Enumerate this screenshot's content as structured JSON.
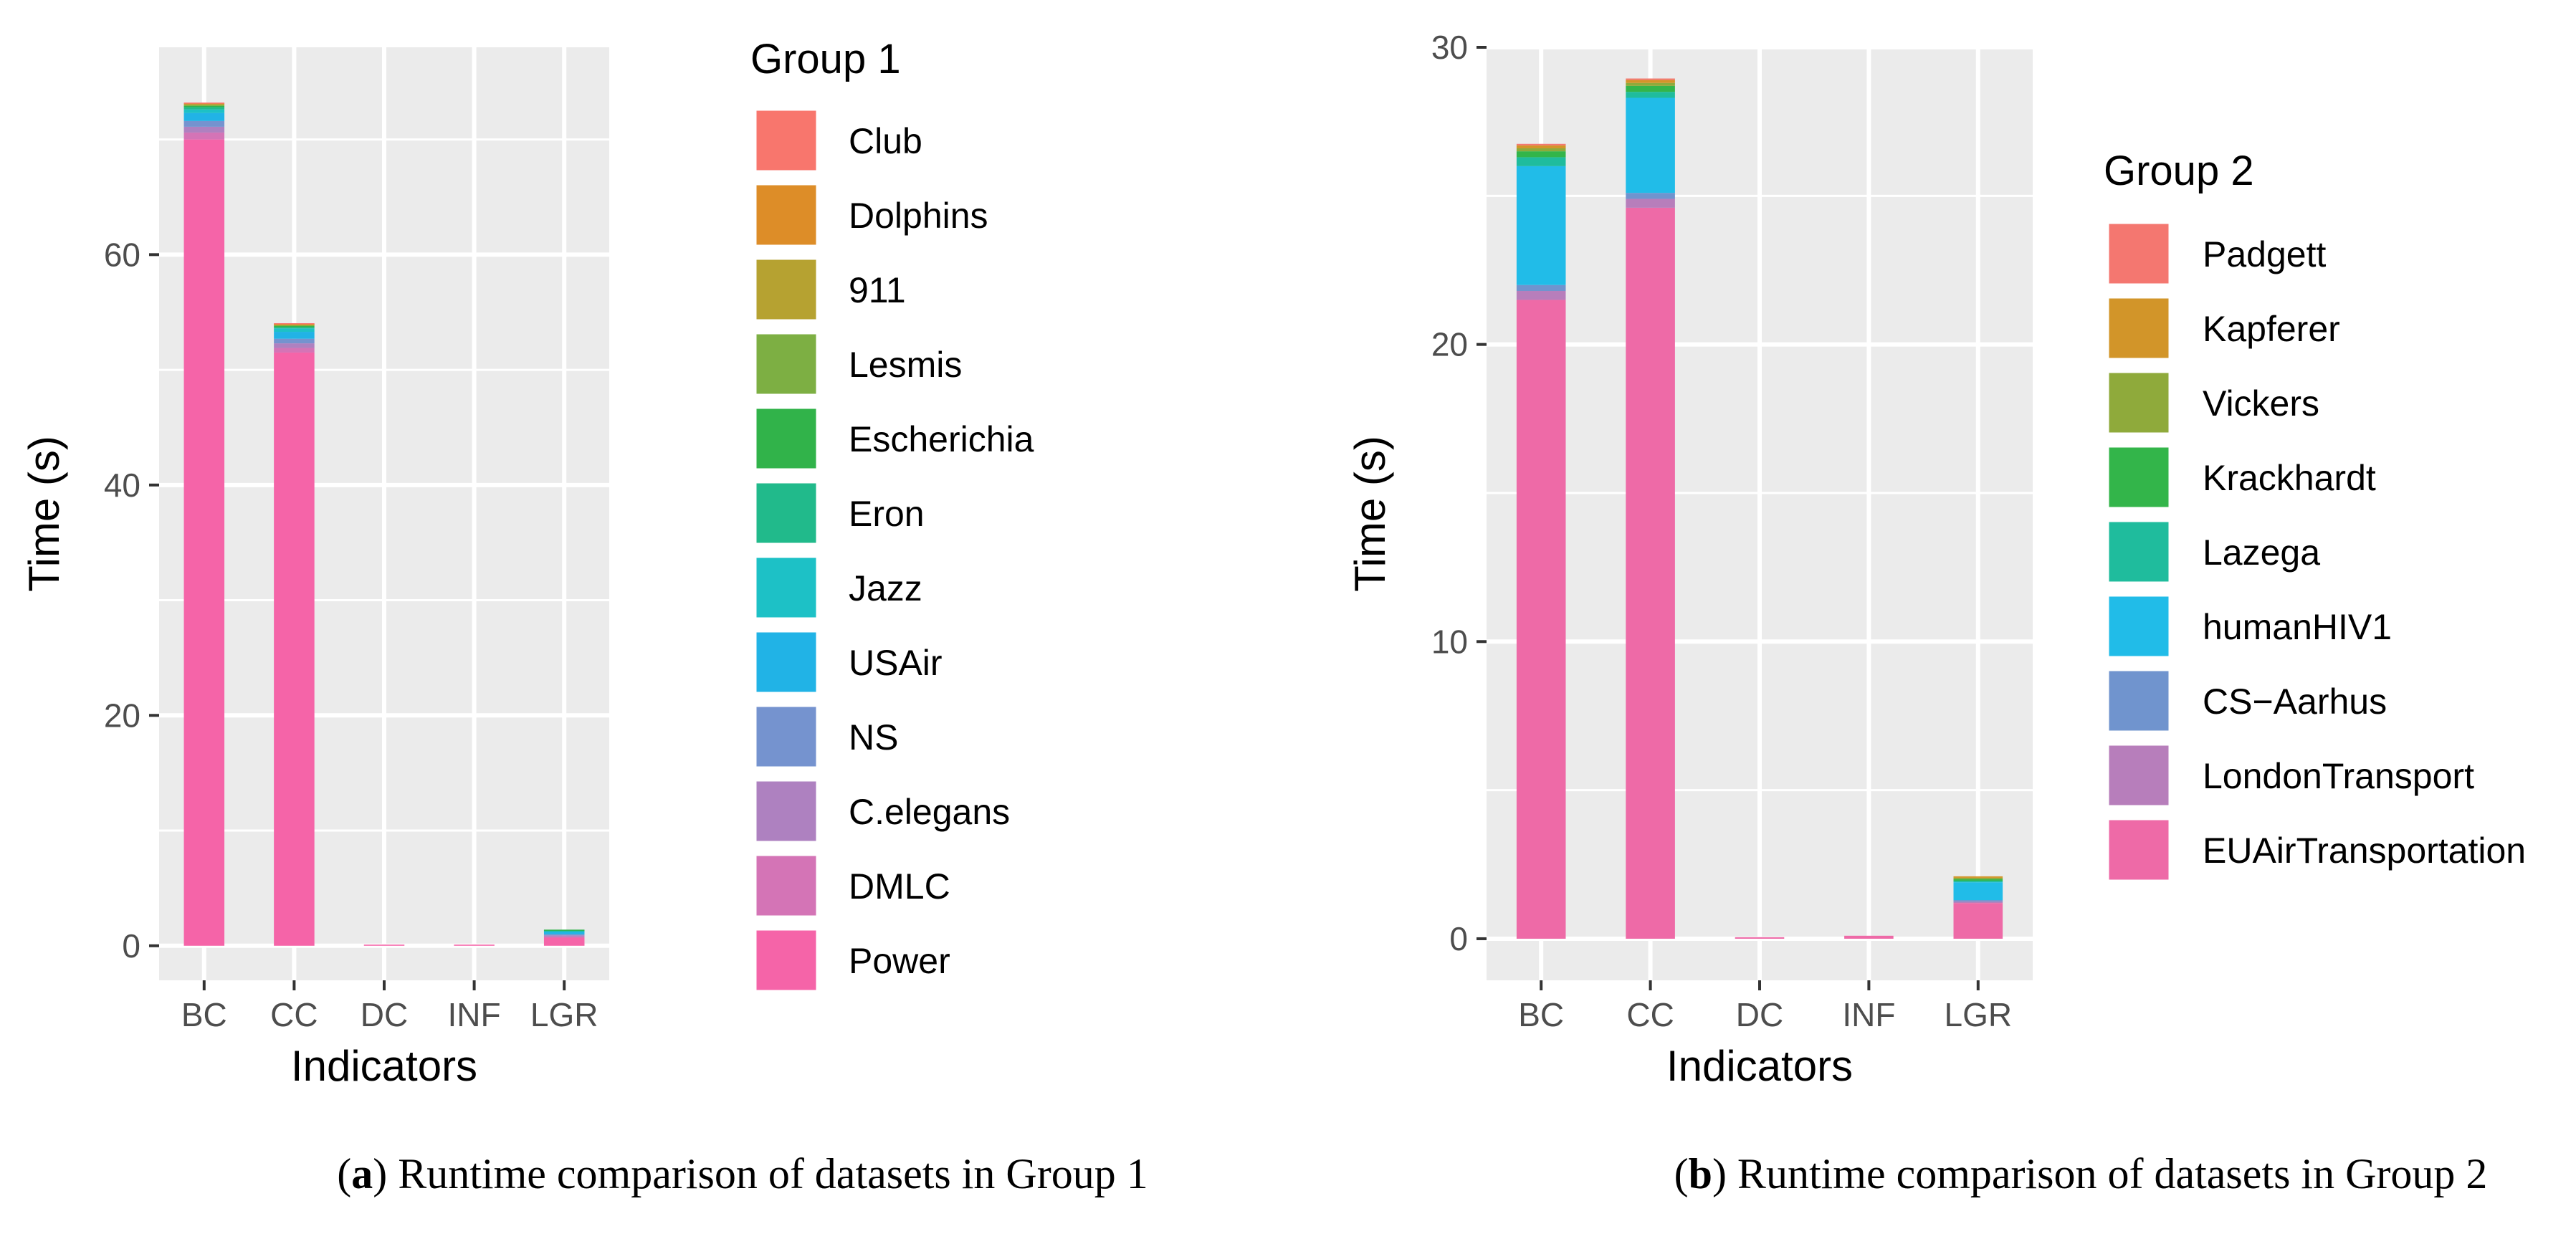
{
  "chart_data": [
    {
      "type": "bar",
      "stacked": true,
      "xlabel": "Indicators",
      "ylabel": "Time (s)",
      "categories": [
        "BC",
        "CC",
        "DC",
        "INF",
        "LGR"
      ],
      "ylim": [
        -3.0,
        78.0
      ],
      "yticks": [
        0,
        20,
        40,
        60
      ],
      "legend_title": "Group 1",
      "caption_letter": "a",
      "caption_text": "Runtime comparison of datasets in Group 1",
      "series": [
        {
          "name": "Power",
          "color": "#F564A8",
          "values": [
            70.0,
            51.5,
            0.1,
            0.1,
            0.7
          ]
        },
        {
          "name": "DMLC",
          "color": "#D474B6",
          "values": [
            0.6,
            0.4,
            0.0,
            0.0,
            0.1
          ]
        },
        {
          "name": "C.elegans",
          "color": "#AE81C0",
          "values": [
            0.5,
            0.4,
            0.0,
            0.0,
            0.1
          ]
        },
        {
          "name": "NS",
          "color": "#7593CF",
          "values": [
            0.5,
            0.4,
            0.0,
            0.0,
            0.1
          ]
        },
        {
          "name": "USAir",
          "color": "#21B3E6",
          "values": [
            0.7,
            0.6,
            0.0,
            0.0,
            0.2
          ]
        },
        {
          "name": "Jazz",
          "color": "#1DC1C6",
          "values": [
            0.3,
            0.3,
            0.0,
            0.0,
            0.1
          ]
        },
        {
          "name": "Eron",
          "color": "#21BA8B",
          "values": [
            0.2,
            0.1,
            0.0,
            0.0,
            0.05
          ]
        },
        {
          "name": "Escherichia",
          "color": "#31B34A",
          "values": [
            0.1,
            0.1,
            0.0,
            0.0,
            0.05
          ]
        },
        {
          "name": "Lesmis",
          "color": "#7DAF43",
          "values": [
            0.1,
            0.1,
            0.0,
            0.0,
            0.0
          ]
        },
        {
          "name": "911",
          "color": "#B6A231",
          "values": [
            0.1,
            0.05,
            0.0,
            0.0,
            0.0
          ]
        },
        {
          "name": "Dolphins",
          "color": "#DD8D28",
          "values": [
            0.05,
            0.05,
            0.0,
            0.0,
            0.0
          ]
        },
        {
          "name": "Club",
          "color": "#F8766D",
          "values": [
            0.05,
            0.05,
            0.0,
            0.0,
            0.0
          ]
        }
      ]
    },
    {
      "type": "bar",
      "stacked": true,
      "xlabel": "Indicators",
      "ylabel": "Time (s)",
      "categories": [
        "BC",
        "CC",
        "DC",
        "INF",
        "LGR"
      ],
      "ylim": [
        -1.4,
        30.0
      ],
      "yticks": [
        0,
        10,
        20,
        30
      ],
      "legend_title": "Group 2",
      "caption_letter": "b",
      "caption_text": "Runtime comparison of datasets in Group 2",
      "series": [
        {
          "name": "EUAirTransportation",
          "color": "#EE6AA7",
          "values": [
            21.5,
            24.6,
            0.05,
            0.1,
            1.2
          ]
        },
        {
          "name": "LondonTransport",
          "color": "#B77EBB",
          "values": [
            0.3,
            0.3,
            0.0,
            0.0,
            0.05
          ]
        },
        {
          "name": "CS−Aarhus",
          "color": "#7094CE",
          "values": [
            0.2,
            0.2,
            0.0,
            0.0,
            0.05
          ]
        },
        {
          "name": "humanHIV1",
          "color": "#21BCE8",
          "values": [
            4.0,
            3.2,
            0.0,
            0.0,
            0.6
          ]
        },
        {
          "name": "Lazega",
          "color": "#1FBC9D",
          "values": [
            0.3,
            0.2,
            0.0,
            0.0,
            0.05
          ]
        },
        {
          "name": "Krackhardt",
          "color": "#33B54A",
          "values": [
            0.2,
            0.2,
            0.0,
            0.0,
            0.05
          ]
        },
        {
          "name": "Vickers",
          "color": "#8FAA3B",
          "values": [
            0.1,
            0.1,
            0.0,
            0.0,
            0.05
          ]
        },
        {
          "name": "Kapferer",
          "color": "#D29529",
          "values": [
            0.1,
            0.1,
            0.0,
            0.0,
            0.05
          ]
        },
        {
          "name": "Padgett",
          "color": "#F47770",
          "values": [
            0.05,
            0.05,
            0.0,
            0.0,
            0.0
          ]
        }
      ]
    }
  ]
}
